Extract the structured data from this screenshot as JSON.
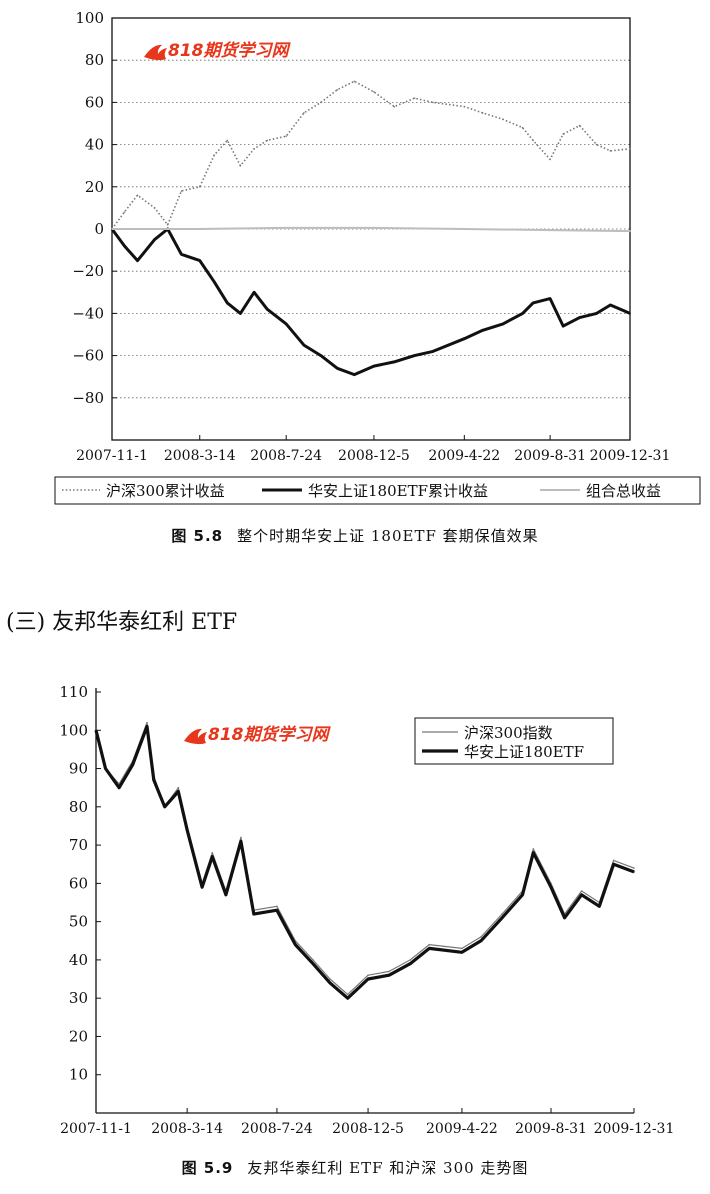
{
  "watermark": {
    "logo_text": "818期货学习网",
    "logo_color": "#e8361c"
  },
  "section_heading": "(三) 友邦华泰红利 ETF",
  "chart_data": [
    {
      "type": "line",
      "figure_label": "图 5.8",
      "title": "整个时期华安上证 180ETF 套期保值效果",
      "xlabel": "",
      "ylabel": "",
      "x_ticks": [
        "2007-11-1",
        "2008-3-14",
        "2008-7-24",
        "2008-12-5",
        "2009-4-22",
        "2009-8-31",
        "2009-12-31"
      ],
      "ylim": [
        -100,
        100
      ],
      "y_ticks": [
        100,
        80,
        60,
        40,
        20,
        0,
        -20,
        -40,
        -60,
        -80
      ],
      "grid": "horizontal dotted",
      "legend_position": "bottom",
      "series": [
        {
          "name": "沪深300累计收益",
          "style": "dotted",
          "color": "#777777",
          "x": [
            "2007-11-1",
            "2007-11-20",
            "2007-12-10",
            "2008-1-5",
            "2008-1-25",
            "2008-2-15",
            "2008-3-14",
            "2008-4-5",
            "2008-4-25",
            "2008-5-15",
            "2008-6-5",
            "2008-6-25",
            "2008-7-24",
            "2008-8-20",
            "2008-9-15",
            "2008-10-10",
            "2008-11-5",
            "2008-12-5",
            "2009-1-5",
            "2009-2-5",
            "2009-3-5",
            "2009-4-22",
            "2009-5-20",
            "2009-6-20",
            "2009-7-20",
            "2009-8-5",
            "2009-8-31",
            "2009-9-20",
            "2009-10-15",
            "2009-11-10",
            "2009-12-1",
            "2009-12-31"
          ],
          "values": [
            0,
            8,
            16,
            10,
            2,
            18,
            20,
            35,
            42,
            30,
            38,
            42,
            44,
            55,
            60,
            66,
            70,
            65,
            58,
            62,
            60,
            58,
            55,
            52,
            48,
            42,
            33,
            45,
            49,
            40,
            37,
            38
          ]
        },
        {
          "name": "华安上证180ETF累计收益",
          "style": "solid-thick",
          "color": "#111111",
          "x": [
            "2007-11-1",
            "2007-11-20",
            "2007-12-10",
            "2008-1-5",
            "2008-1-25",
            "2008-2-15",
            "2008-3-14",
            "2008-4-5",
            "2008-4-25",
            "2008-5-15",
            "2008-6-5",
            "2008-6-25",
            "2008-7-24",
            "2008-8-20",
            "2008-9-15",
            "2008-10-10",
            "2008-11-5",
            "2008-12-5",
            "2009-1-5",
            "2009-2-5",
            "2009-3-5",
            "2009-4-22",
            "2009-5-20",
            "2009-6-20",
            "2009-7-20",
            "2009-8-5",
            "2009-8-31",
            "2009-9-20",
            "2009-10-15",
            "2009-11-10",
            "2009-12-1",
            "2009-12-31"
          ],
          "values": [
            0,
            -8,
            -15,
            -5,
            0,
            -12,
            -15,
            -25,
            -35,
            -40,
            -30,
            -38,
            -45,
            -55,
            -60,
            -66,
            -69,
            -65,
            -63,
            -60,
            -58,
            -52,
            -48,
            -45,
            -40,
            -35,
            -33,
            -46,
            -42,
            -40,
            -36,
            -40
          ]
        },
        {
          "name": "组合总收益",
          "style": "solid-light",
          "color": "#bdbdbd",
          "x": [
            "2007-11-1",
            "2008-3-14",
            "2008-7-24",
            "2008-12-5",
            "2009-4-22",
            "2009-8-31",
            "2009-12-31"
          ],
          "values": [
            0,
            0,
            0.5,
            0.5,
            0,
            -0.5,
            -1
          ]
        }
      ]
    },
    {
      "type": "line",
      "figure_label": "图 5.9",
      "title": "友邦华泰红利 ETF 和沪深 300 走势图",
      "xlabel": "",
      "ylabel": "",
      "x_ticks": [
        "2007-11-1",
        "2008-3-14",
        "2008-7-24",
        "2008-12-5",
        "2009-4-22",
        "2009-8-31",
        "2009-12-31"
      ],
      "ylim": [
        0,
        110
      ],
      "y_ticks": [
        110,
        100,
        90,
        80,
        70,
        60,
        50,
        40,
        30,
        20,
        10
      ],
      "grid": "none",
      "legend_position": "top-right",
      "series": [
        {
          "name": "沪深300指数",
          "style": "thin",
          "color": "#777777",
          "x": [
            "2007-11-1",
            "2007-11-15",
            "2007-12-5",
            "2007-12-25",
            "2008-1-15",
            "2008-1-25",
            "2008-2-10",
            "2008-3-1",
            "2008-3-14",
            "2008-4-5",
            "2008-4-20",
            "2008-5-10",
            "2008-6-1",
            "2008-6-20",
            "2008-7-24",
            "2008-8-20",
            "2008-9-15",
            "2008-10-10",
            "2008-11-5",
            "2008-12-5",
            "2009-1-5",
            "2009-2-5",
            "2009-3-5",
            "2009-4-22",
            "2009-5-20",
            "2009-6-20",
            "2009-7-20",
            "2009-8-5",
            "2009-8-31",
            "2009-9-20",
            "2009-10-15",
            "2009-11-10",
            "2009-12-1",
            "2009-12-31"
          ],
          "values": [
            100,
            90,
            86,
            92,
            102,
            88,
            80,
            85,
            75,
            60,
            68,
            58,
            72,
            53,
            54,
            45,
            40,
            35,
            31,
            36,
            37,
            40,
            44,
            43,
            46,
            52,
            58,
            69,
            60,
            52,
            58,
            55,
            66,
            64
          ]
        },
        {
          "name": "华安上证180ETF",
          "style": "thick",
          "color": "#111111",
          "x": [
            "2007-11-1",
            "2007-11-15",
            "2007-12-5",
            "2007-12-25",
            "2008-1-15",
            "2008-1-25",
            "2008-2-10",
            "2008-3-1",
            "2008-3-14",
            "2008-4-5",
            "2008-4-20",
            "2008-5-10",
            "2008-6-1",
            "2008-6-20",
            "2008-7-24",
            "2008-8-20",
            "2008-9-15",
            "2008-10-10",
            "2008-11-5",
            "2008-12-5",
            "2009-1-5",
            "2009-2-5",
            "2009-3-5",
            "2009-4-22",
            "2009-5-20",
            "2009-6-20",
            "2009-7-20",
            "2009-8-5",
            "2009-8-31",
            "2009-9-20",
            "2009-10-15",
            "2009-11-10",
            "2009-12-1",
            "2009-12-31"
          ],
          "values": [
            100,
            90,
            85,
            91,
            101,
            87,
            80,
            84,
            74,
            59,
            67,
            57,
            71,
            52,
            53,
            44,
            39,
            34,
            30,
            35,
            36,
            39,
            43,
            42,
            45,
            51,
            57,
            68,
            59,
            51,
            57,
            54,
            65,
            63
          ]
        }
      ]
    }
  ]
}
